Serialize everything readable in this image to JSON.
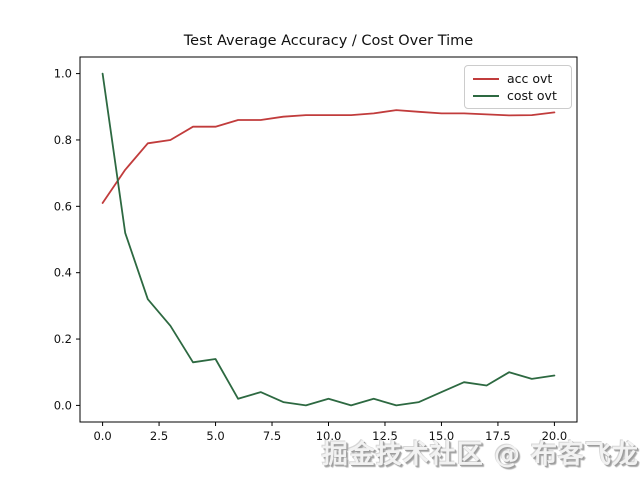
{
  "watermark": {
    "text": "掘金技术社区 @ 布客飞龙"
  },
  "chart_data": {
    "type": "line",
    "title": "Test Average Accuracy / Cost Over Time",
    "xlabel": "",
    "ylabel": "",
    "xlim": [
      -1,
      21
    ],
    "ylim": [
      -0.05,
      1.05
    ],
    "grid": false,
    "legend_position": "upper right",
    "x": [
      0,
      1,
      2,
      3,
      4,
      5,
      6,
      7,
      8,
      9,
      10,
      11,
      12,
      13,
      14,
      15,
      16,
      17,
      18,
      19,
      20
    ],
    "series": [
      {
        "name": "acc ovt",
        "color": "#c13c3c",
        "values": [
          0.61,
          0.71,
          0.79,
          0.8,
          0.84,
          0.84,
          0.86,
          0.86,
          0.87,
          0.875,
          0.875,
          0.875,
          0.88,
          0.89,
          0.885,
          0.88,
          0.88,
          0.877,
          0.874,
          0.875,
          0.883
        ]
      },
      {
        "name": "cost ovt",
        "color": "#2d6941",
        "values": [
          1.0,
          0.52,
          0.32,
          0.24,
          0.13,
          0.14,
          0.02,
          0.04,
          0.01,
          0.0,
          0.02,
          0.0,
          0.02,
          0.0,
          0.01,
          0.04,
          0.07,
          0.06,
          0.1,
          0.08,
          0.09
        ]
      }
    ],
    "x_ticks": {
      "values": [
        0,
        2.5,
        5,
        7.5,
        10,
        12.5,
        15,
        17.5,
        20
      ],
      "labels": [
        "0.0",
        "2.5",
        "5.0",
        "7.5",
        "10.0",
        "12.5",
        "15.0",
        "17.5",
        "20.0"
      ]
    },
    "y_ticks": {
      "values": [
        0,
        0.2,
        0.4,
        0.6,
        0.8,
        1.0
      ],
      "labels": [
        "0.0",
        "0.2",
        "0.4",
        "0.6",
        "0.8",
        "1.0"
      ]
    },
    "axis_color": "#000000",
    "tick_label_color": "#111111"
  }
}
